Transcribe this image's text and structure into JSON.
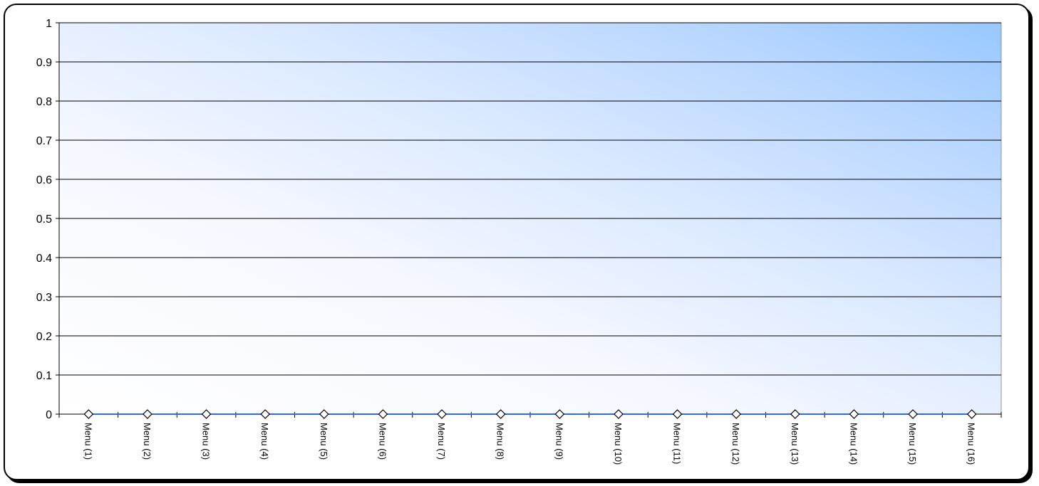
{
  "chart_data": {
    "type": "line",
    "title": "",
    "xlabel": "",
    "ylabel": "",
    "categories": [
      "Menu  (1)",
      "Menu  (2)",
      "Menu  (3)",
      "Menu  (4)",
      "Menu  (5)",
      "Menu  (6)",
      "Menu  (7)",
      "Menu  (8)",
      "Menu  (9)",
      "Menu (10)",
      "Menu (11)",
      "Menu (12)",
      "Menu (13)",
      "Menu (14)",
      "Menu (15)",
      "Menu (16)"
    ],
    "series": [
      {
        "values": [
          0,
          0,
          0,
          0,
          0,
          0,
          0,
          0,
          0,
          0,
          0,
          0,
          0,
          0,
          0,
          0
        ],
        "color": "#3366ff",
        "marker": "diamond"
      }
    ],
    "ylim": [
      0,
      1
    ],
    "yticks": [
      "0",
      "0.1",
      "0.2",
      "0.3",
      "0.4",
      "0.5",
      "0.6",
      "0.7",
      "0.8",
      "0.9",
      "1"
    ],
    "grid": true,
    "legend": "none",
    "plot_background": "gradient white to light blue (top-right)"
  }
}
